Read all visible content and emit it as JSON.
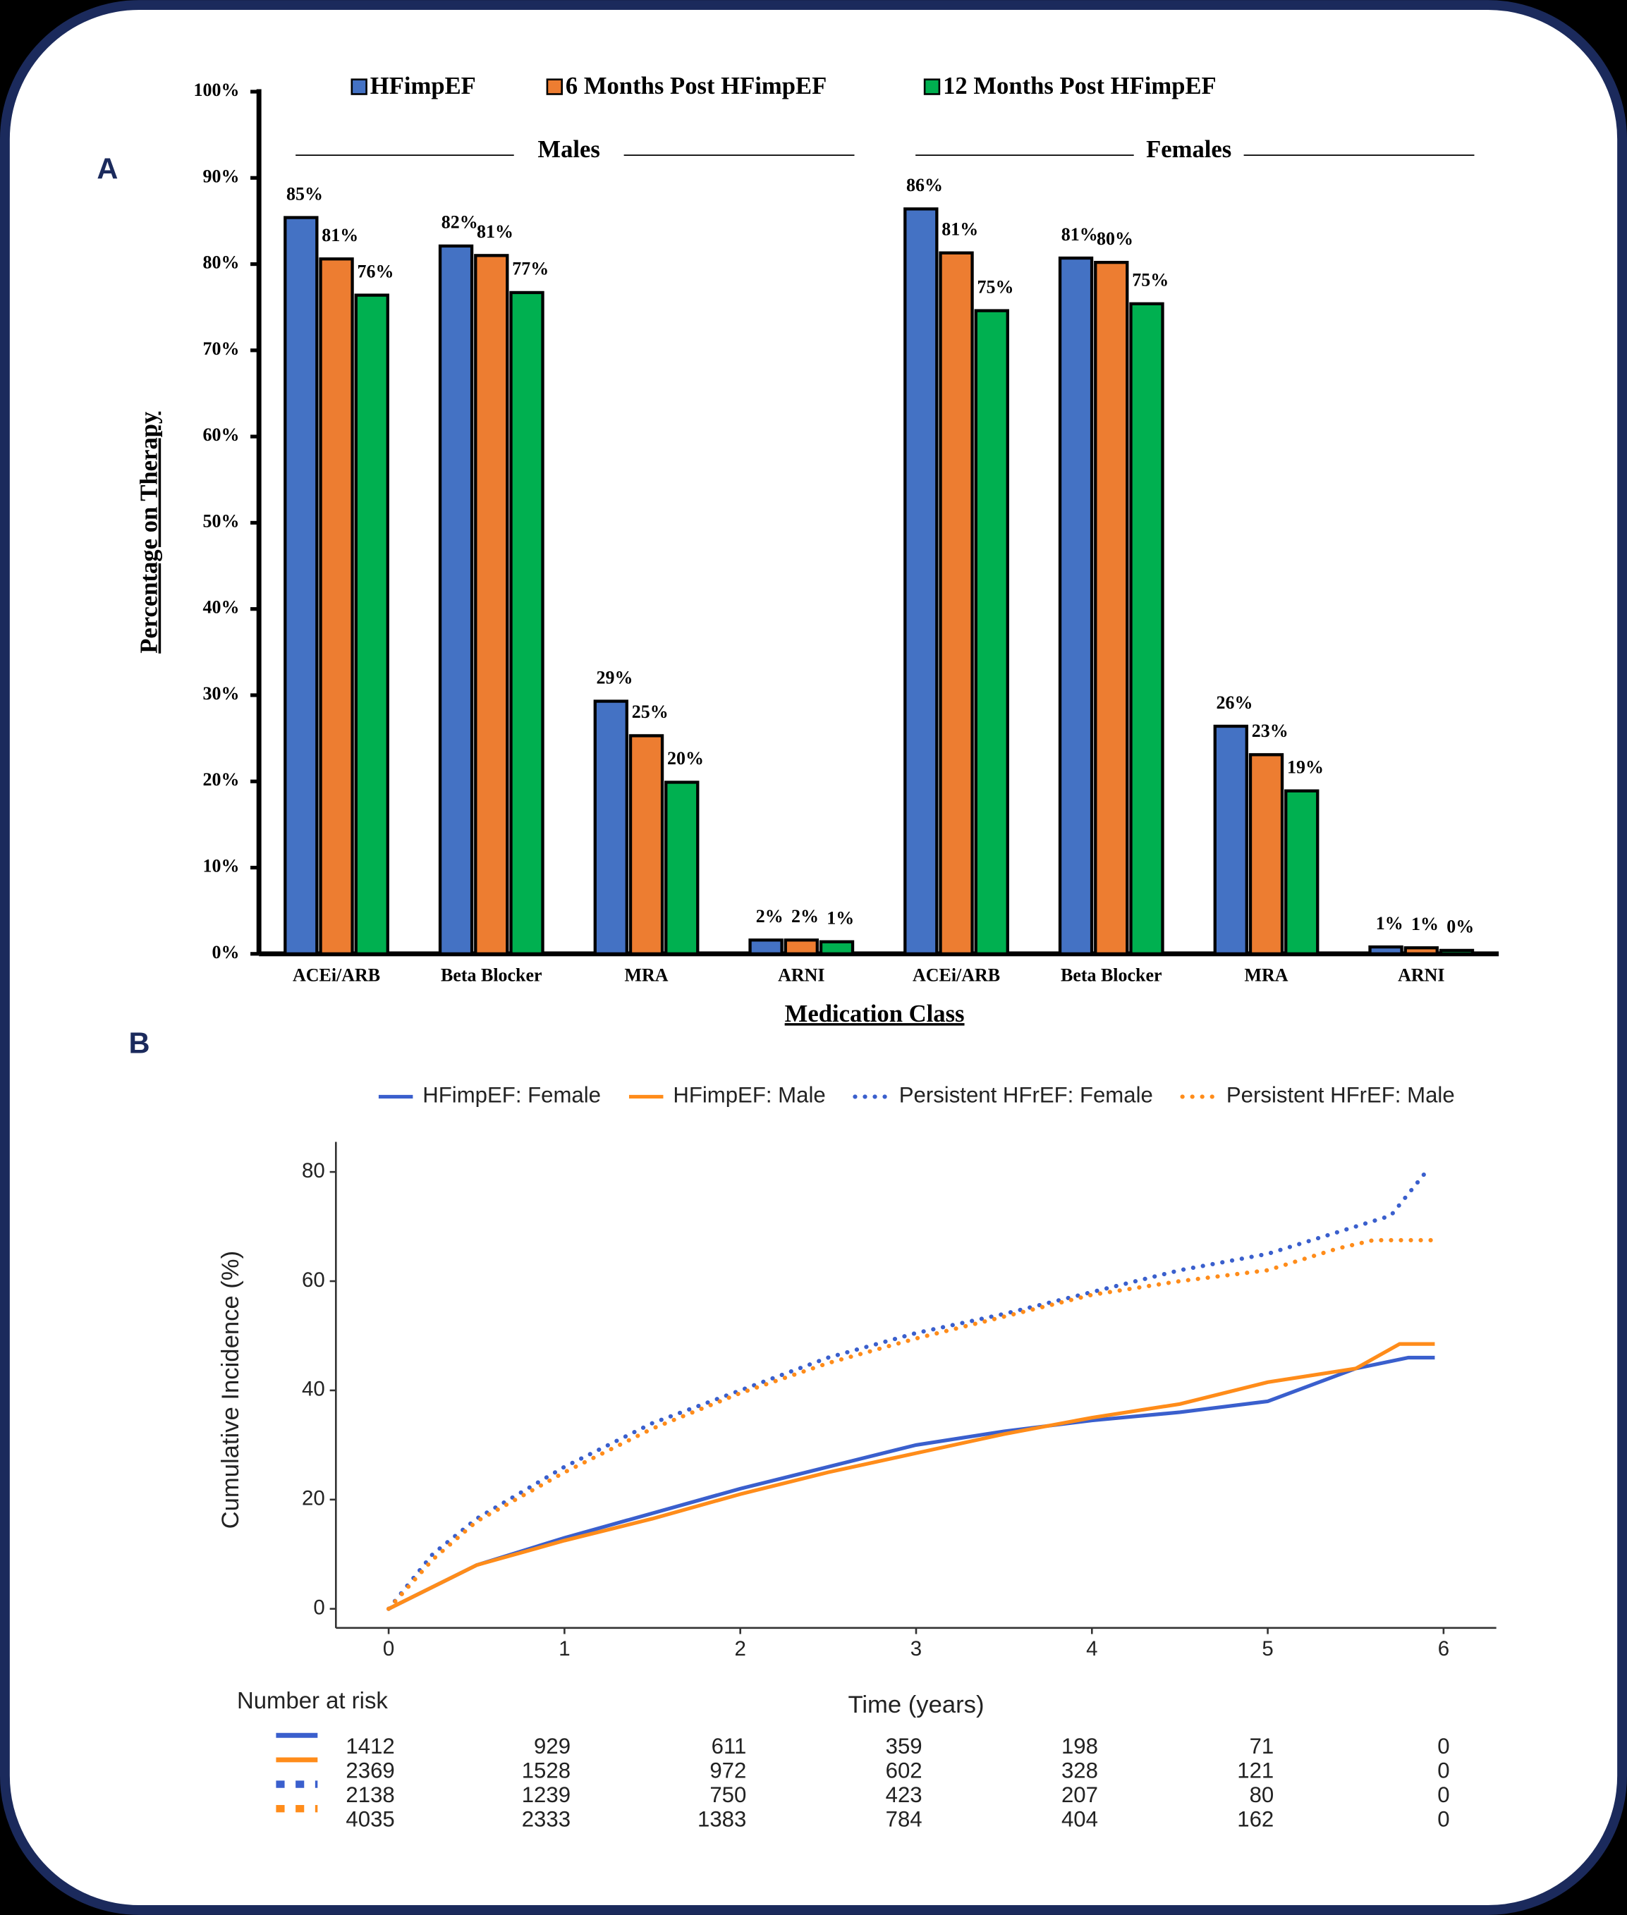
{
  "chart_data": [
    {
      "type": "bar",
      "panel_label": "A",
      "groups": [
        "Males",
        "Females"
      ],
      "categories": [
        "ACEi/ARB",
        "Beta Blocker",
        "MRA",
        "ARNI",
        "ACEi/ARB",
        "Beta Blocker",
        "MRA",
        "ARNI"
      ],
      "series": [
        {
          "name": "HFimpEF",
          "color": "#4472c4",
          "values": [
            85.4,
            82.1,
            29.3,
            1.6,
            86.4,
            80.7,
            26.4,
            0.8
          ],
          "value_labels": [
            "85%",
            "82%",
            "29%",
            "2%",
            "86%",
            "81%",
            "26%",
            "1%"
          ]
        },
        {
          "name": "6 Months Post HFimpEF",
          "color": "#ed7d31",
          "values": [
            80.6,
            81.0,
            25.3,
            1.6,
            81.3,
            80.2,
            23.1,
            0.7
          ],
          "value_labels": [
            "81%",
            "81%",
            "25%",
            "2%",
            "81%",
            "80%",
            "23%",
            "1%"
          ]
        },
        {
          "name": "12 Months Post HFimpEF",
          "color": "#00b050",
          "values": [
            76.4,
            76.7,
            19.9,
            1.4,
            74.6,
            75.4,
            18.9,
            0.4
          ],
          "value_labels": [
            "76%",
            "77%",
            "20%",
            "1%",
            "75%",
            "75%",
            "19%",
            "0%"
          ]
        }
      ],
      "x_label": "Medication Class",
      "y_label": "Percentage on Therapy",
      "ylim": [
        0,
        100
      ],
      "yticks": [
        {
          "value": 0,
          "label": "0%"
        },
        {
          "value": 10,
          "label": "10%"
        },
        {
          "value": 20,
          "label": "20%"
        },
        {
          "value": 30,
          "label": "30%"
        },
        {
          "value": 40,
          "label": "40%"
        },
        {
          "value": 50,
          "label": "50%"
        },
        {
          "value": 60,
          "label": "60%"
        },
        {
          "value": 70,
          "label": "70%"
        },
        {
          "value": 80,
          "label": "80%"
        },
        {
          "value": 90,
          "label": "90%"
        },
        {
          "value": 100,
          "label": "100%"
        }
      ],
      "grid": false,
      "legend": "top"
    },
    {
      "type": "line",
      "panel_label": "B",
      "series": [
        {
          "name": "HFimpEF: Female",
          "color": "#3a5fcd",
          "style": "solid",
          "x": [
            0,
            0.5,
            1,
            1.5,
            2,
            2.5,
            3,
            3.5,
            4,
            4.5,
            5,
            5.5,
            5.8,
            5.95
          ],
          "values": [
            0,
            8,
            13,
            17.5,
            22,
            26,
            30,
            32.5,
            34.5,
            36,
            38,
            44,
            46,
            46
          ]
        },
        {
          "name": "HFimpEF: Male",
          "color": "#ff8c1a",
          "style": "solid",
          "x": [
            0,
            0.5,
            1,
            1.5,
            2,
            2.5,
            3,
            3.5,
            4,
            4.5,
            5,
            5.5,
            5.75,
            5.95
          ],
          "values": [
            0,
            8,
            12.5,
            16.5,
            21,
            25,
            28.5,
            32,
            35,
            37.5,
            41.5,
            44,
            48.5,
            48.5
          ]
        },
        {
          "name": "Persistent HFrEF: Female",
          "color": "#3a5fcd",
          "style": "dotted",
          "x": [
            0,
            0.25,
            0.5,
            1,
            1.5,
            2,
            2.5,
            3,
            3.5,
            4,
            4.5,
            5,
            5.4,
            5.7,
            5.9
          ],
          "values": [
            0,
            10,
            16.5,
            26,
            34,
            40,
            46,
            50.5,
            54,
            58,
            62,
            65,
            69,
            72,
            80
          ]
        },
        {
          "name": "Persistent HFrEF: Male",
          "color": "#ff8c1a",
          "style": "dotted",
          "x": [
            0,
            0.25,
            0.5,
            1,
            1.5,
            2,
            2.5,
            3,
            3.5,
            4,
            4.5,
            5,
            5.4,
            5.6,
            5.95
          ],
          "values": [
            0,
            9,
            16,
            25,
            33,
            39.5,
            45,
            49.5,
            53.5,
            57.5,
            60,
            62,
            66,
            67.5,
            67.5
          ]
        }
      ],
      "x_label": "Time (years)",
      "y_label": "Cumulative Incidence (%)",
      "xlim": [
        -0.3,
        6.3
      ],
      "xticks": [
        0,
        1,
        2,
        3,
        4,
        5,
        6
      ],
      "ylim": [
        -3.5,
        85.5
      ],
      "yticks": [
        0,
        20,
        40,
        60,
        80
      ],
      "grid": false,
      "legend": "top",
      "risk_table": {
        "title": "Number at risk",
        "rows": [
          [
            1412,
            929,
            611,
            359,
            198,
            71,
            0
          ],
          [
            2369,
            1528,
            972,
            602,
            328,
            121,
            0
          ],
          [
            2138,
            1239,
            750,
            423,
            207,
            80,
            0
          ],
          [
            4035,
            2333,
            1383,
            784,
            404,
            162,
            0
          ]
        ]
      }
    }
  ]
}
